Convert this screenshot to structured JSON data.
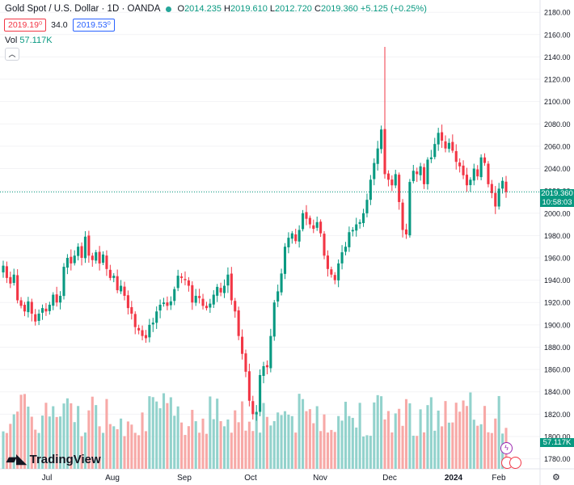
{
  "legend": {
    "title": "Gold Spot / U.S. Dollar · 1D · OANDA",
    "o_label": "O",
    "o_value": "2014.235",
    "h_label": "H",
    "h_value": "2019.610",
    "l_label": "L",
    "l_value": "2012.720",
    "c_label": "C",
    "c_value": "2019.360",
    "change": "+5.125 (+0.25%)"
  },
  "trade": {
    "sell": "2019.19⁰",
    "spread": "34.0",
    "buy": "2019.53⁰"
  },
  "volume": {
    "label": "Vol",
    "value": "57.117K"
  },
  "last_price_tag": {
    "price": "2019.360",
    "countdown": "10:58:03"
  },
  "volume_tag": "57.117K",
  "brand": "TradingView",
  "icons": {
    "collapse": "chevron-up-icon",
    "flash": "lightning-icon",
    "flag": "us-flag-icon",
    "settings": "gear-icon"
  },
  "colors": {
    "up": "#089981",
    "down": "#f23645",
    "up_vol": "#92d2cc",
    "down_vol": "#f7a9a7"
  },
  "chart_data": {
    "type": "candlestick",
    "x_ticks": [
      "Jul",
      "Aug",
      "Sep",
      "Oct",
      "Nov",
      "Dec",
      "2024",
      "Feb"
    ],
    "y_ticks": [
      1780,
      1800,
      1820,
      1840,
      1860,
      1880,
      1900,
      1920,
      1940,
      1960,
      1980,
      2000,
      2020,
      2040,
      2060,
      2080,
      2100,
      2120,
      2140,
      2160,
      2180
    ],
    "ylim": [
      1771,
      2191
    ],
    "closes": [
      1953,
      1942,
      1937,
      1945,
      1922,
      1917,
      1912,
      1921,
      1910,
      1903,
      1910,
      1915,
      1912,
      1918,
      1927,
      1920,
      1926,
      1952,
      1960,
      1955,
      1962,
      1970,
      1960,
      1979,
      1962,
      1958,
      1965,
      1955,
      1963,
      1950,
      1942,
      1944,
      1931,
      1935,
      1926,
      1915,
      1910,
      1898,
      1895,
      1890,
      1888,
      1900,
      1902,
      1912,
      1918,
      1920,
      1917,
      1921,
      1932,
      1944,
      1942,
      1940,
      1935,
      1920,
      1926,
      1924,
      1917,
      1915,
      1919,
      1927,
      1934,
      1929,
      1935,
      1945,
      1922,
      1912,
      1890,
      1874,
      1858,
      1832,
      1820,
      1822,
      1855,
      1863,
      1862,
      1890,
      1920,
      1930,
      1946,
      1970,
      1978,
      1982,
      1975,
      1985,
      2000,
      1995,
      1990,
      1986,
      1992,
      1982,
      1962,
      1950,
      1945,
      1940,
      1955,
      1965,
      1970,
      1983,
      1985,
      1990,
      1992,
      2000,
      2012,
      2030,
      2045,
      2058,
      2075,
      2035,
      2030,
      2025,
      2035,
      2010,
      1985,
      1981,
      2028,
      2038,
      2035,
      2042,
      2026,
      2048,
      2050,
      2062,
      2072,
      2065,
      2058,
      2063,
      2056,
      2046,
      2042,
      2034,
      2025,
      2030,
      2040,
      2033,
      2050,
      2045,
      2026,
      2018,
      2006,
      2022,
      2029,
      2019
    ]
  }
}
